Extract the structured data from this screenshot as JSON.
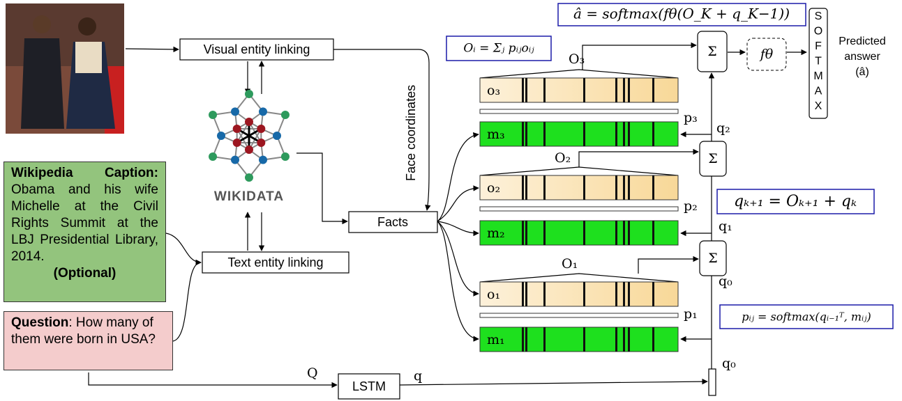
{
  "visual_linking": "Visual entity linking",
  "text_linking": "Text entity linking",
  "facts": "Facts",
  "lstm": "LSTM",
  "wikidata": "WIKIDATA",
  "face_coordinates": "Face coordinates",
  "caption": {
    "title": "Wikipedia Caption:",
    "text": "Obama and his wife Michelle at the Civil Rights Summit at the LBJ Presidential Library, 2014.",
    "optional": "(Optional)"
  },
  "question": {
    "label": "Question",
    "text": ": How many of them were born in USA?"
  },
  "memory": {
    "o3": "o₃",
    "m3": "m₃",
    "p3": "p₃",
    "O3": "O₃",
    "o2": "o₂",
    "m2": "m₂",
    "p2": "p₂",
    "O2": "O₂",
    "o1": "o₁",
    "m1": "m₁",
    "p1": "p₁",
    "O1": "O₁"
  },
  "q_labels": {
    "q2": "q₂",
    "q1": "q₁",
    "q0": "q₀",
    "q0_bottom": "q₀",
    "Q": "Q",
    "q": "q"
  },
  "sum_symbol": "Σ",
  "f_theta": "fθ",
  "softmax_letters": [
    "S",
    "O",
    "F",
    "T",
    "M",
    "A",
    "X"
  ],
  "predicted": [
    "Predicted",
    "answer",
    "(â)"
  ],
  "formulas": {
    "answer": "â = softmax(fθ(O_K + q_K−1))",
    "O_i": "Oᵢ = Σⱼ pᵢⱼoᵢⱼ",
    "q_update": "qₖ₊₁ = Oₖ₊₁ + qₖ",
    "p_ij": "pᵢⱼ = softmax(qᵢ₋₁ᵀ, mᵢⱼ)"
  }
}
